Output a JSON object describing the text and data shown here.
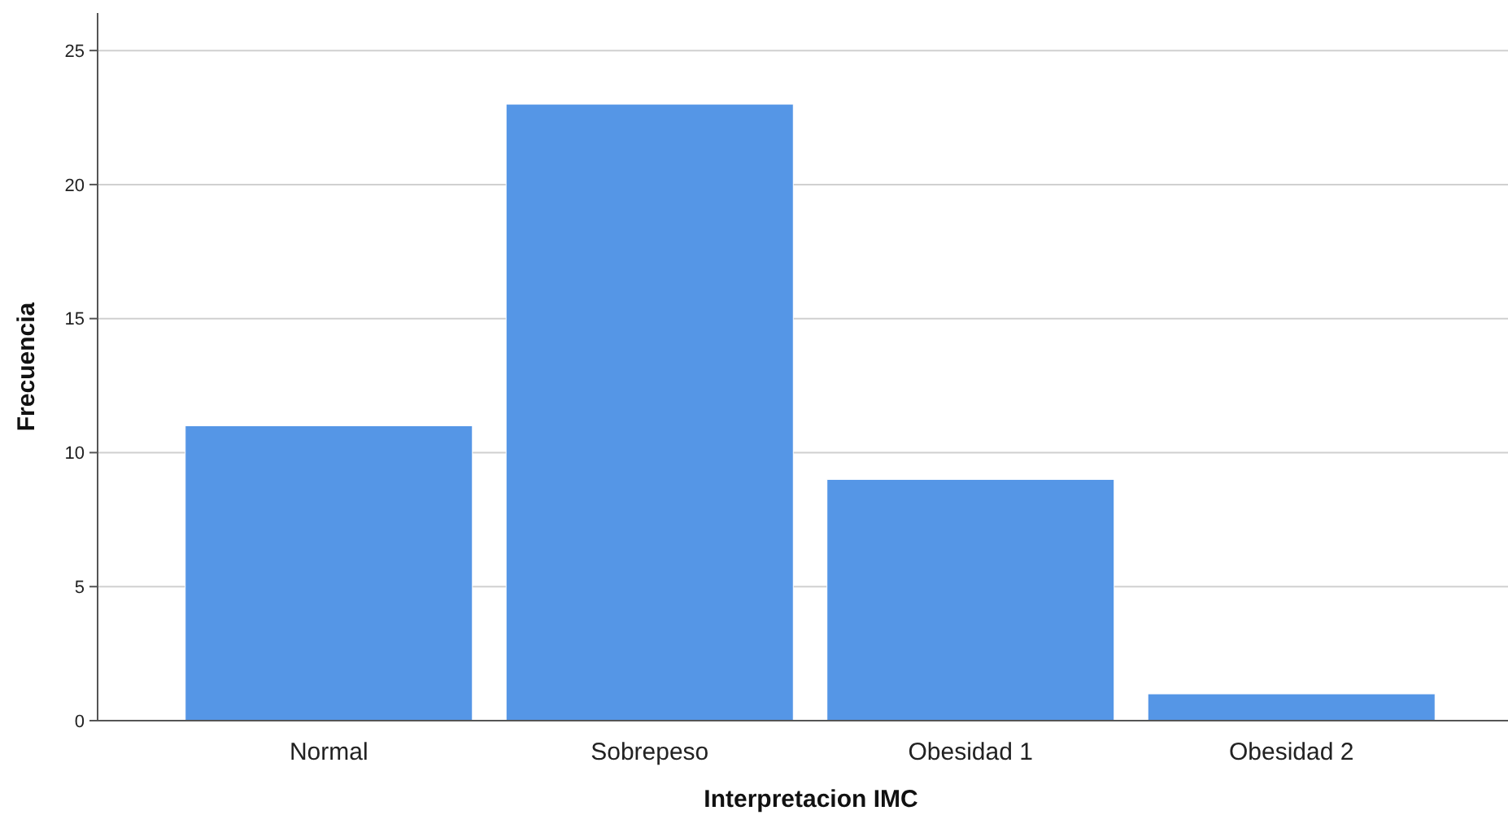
{
  "chart_data": {
    "type": "bar",
    "xlabel": "Interpretacion IMC",
    "ylabel": "Frecuencia",
    "categories": [
      "Normal",
      "Sobrepeso",
      "Obesidad 1",
      "Obesidad 2"
    ],
    "values": [
      11,
      23,
      9,
      1
    ],
    "color": "#5596e6",
    "ylim": [
      0,
      26.4
    ],
    "yticks": [
      0,
      5,
      10,
      15,
      20,
      25
    ],
    "grid": "y"
  }
}
